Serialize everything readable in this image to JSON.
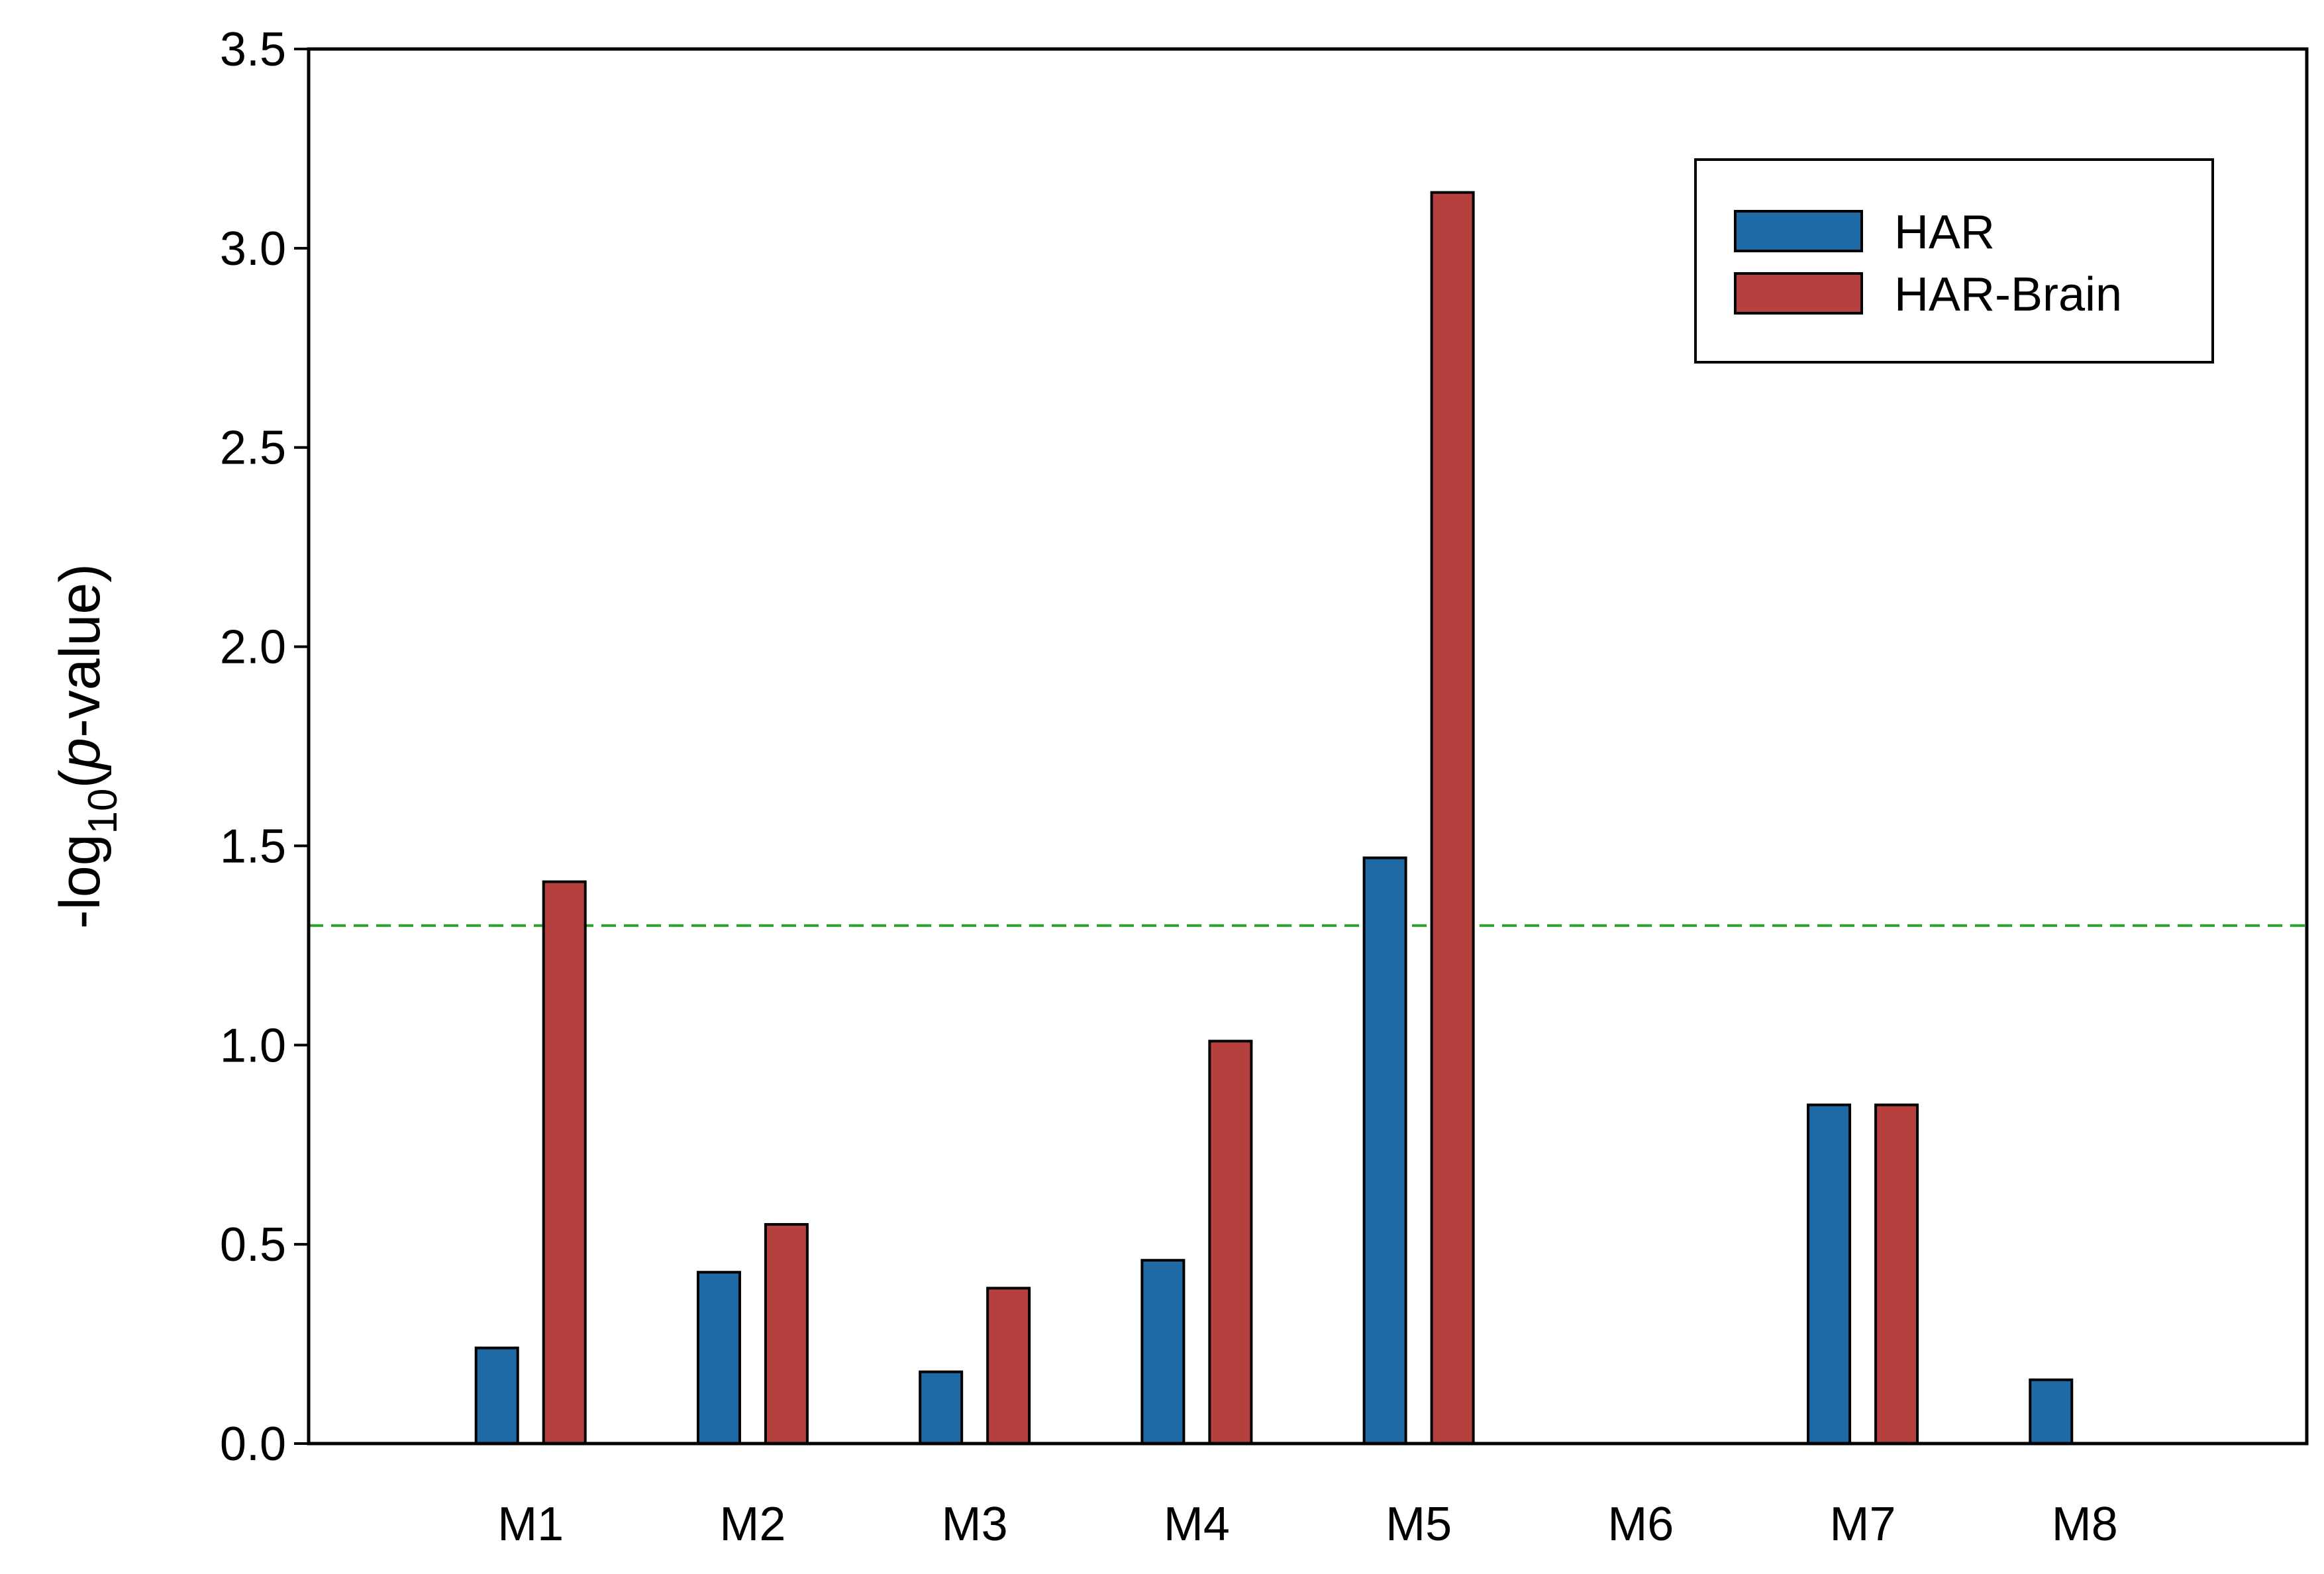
{
  "chart_data": {
    "type": "bar",
    "ylabel_parts": [
      "-log",
      "10",
      "(",
      "p",
      "-value)"
    ],
    "categories": [
      "M1",
      "M2",
      "M3",
      "M4",
      "M5",
      "M6",
      "M7",
      "M8"
    ],
    "series": [
      {
        "name": "HAR",
        "color": "#1f6aa5",
        "values": [
          0.24,
          0.43,
          0.18,
          0.46,
          1.47,
          0,
          0.85,
          0.16
        ]
      },
      {
        "name": "HAR-Brain",
        "color": "#b5403d",
        "values": [
          1.41,
          0.55,
          0.39,
          1.01,
          3.14,
          0,
          0.85,
          0
        ]
      }
    ],
    "ylim": [
      0,
      3.5
    ],
    "yticks": [
      {
        "value": 0,
        "label": "0.0"
      },
      0.5,
      {
        "value": 1,
        "label": "1.0"
      },
      1.5,
      {
        "value": 2,
        "label": "2.0"
      },
      2.5,
      {
        "value": 3,
        "label": "3.0"
      },
      3.5
    ],
    "threshold": 1.3,
    "threshold_color": "#2ca02c",
    "legend": "upper right"
  }
}
